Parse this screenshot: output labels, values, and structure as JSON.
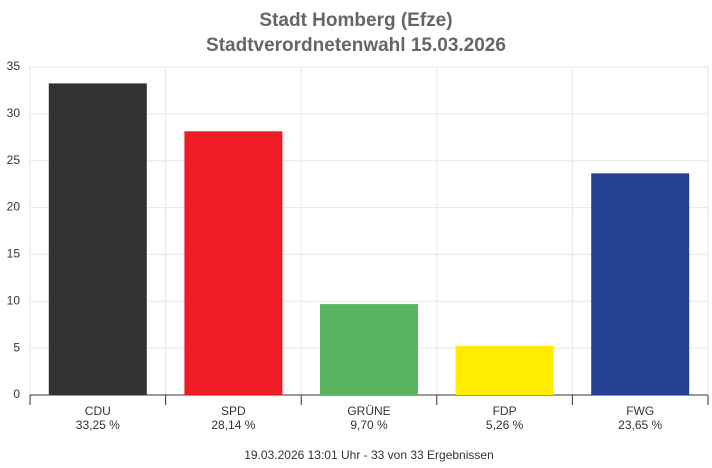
{
  "chart_data": {
    "type": "bar",
    "title": "Stadt Homberg (Efze)",
    "subtitle": "Stadtverordnetenwahl 15.03.2026",
    "categories": [
      "CDU",
      "SPD",
      "GRÜNE",
      "FDP",
      "FWG"
    ],
    "values": [
      33.25,
      28.14,
      9.7,
      5.26,
      23.65
    ],
    "value_labels": [
      "33,25 %",
      "28,14 %",
      "9,70 %",
      "5,26 %",
      "23,65 %"
    ],
    "colors": [
      "#333132",
      "#ee1c25",
      "#57b45f",
      "#ffec00",
      "#25408f"
    ],
    "ylim": [
      0,
      35
    ],
    "yticks": [
      0,
      5,
      10,
      15,
      20,
      25,
      30,
      35
    ],
    "grid": true,
    "footnote": "19.03.2026 13:01 Uhr - 33 von 33 Ergebnissen"
  }
}
